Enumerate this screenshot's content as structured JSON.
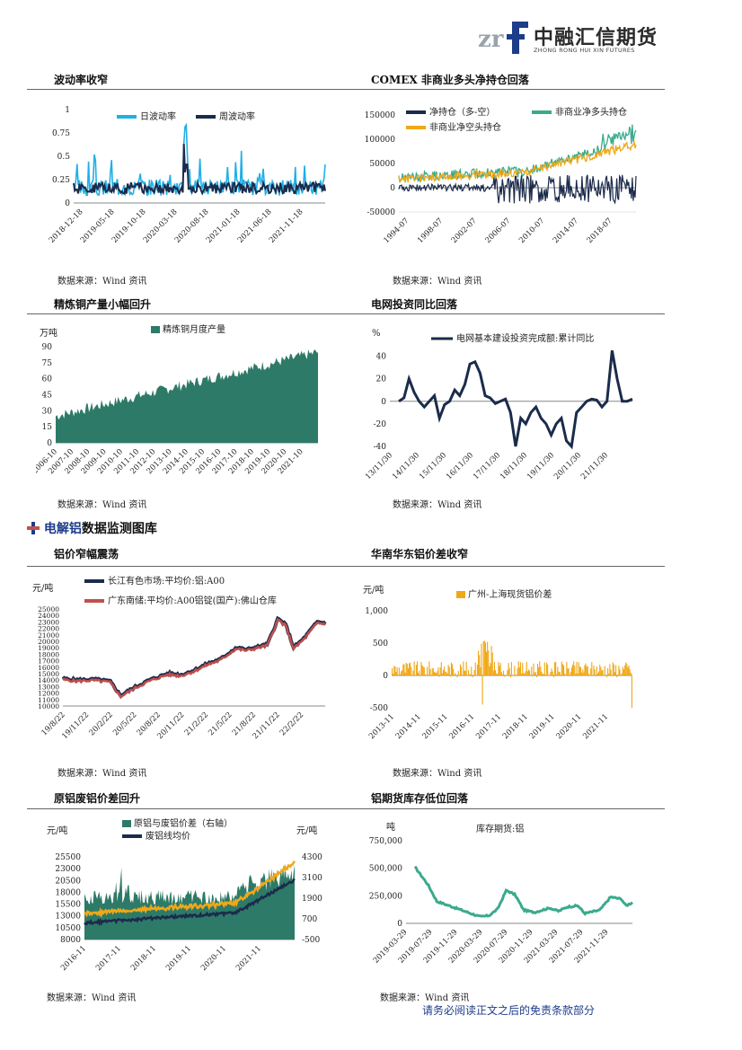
{
  "header": {
    "logo_text_cn": "中融汇信期货",
    "logo_text_en": "ZHONG RONG HUI XIN FUTURES",
    "logo_mark": "zrf"
  },
  "section_title": {
    "prefix": "电解铝",
    "suffix": "数据监测图库"
  },
  "footer": "请务必阅读正文之后的免责条款部分",
  "panels": {
    "vol": {
      "title": "波动率收窄",
      "source": "数据来源：Wind 资讯"
    },
    "comex": {
      "title": "COMEX 非商业多头净持仓回落",
      "source": "数据来源：Wind 资讯"
    },
    "copper": {
      "title": "精炼铜产量小幅回升",
      "source": "数据来源：Wind 资讯"
    },
    "grid": {
      "title": "电网投资同比回落",
      "source": "数据来源：Wind 资讯"
    },
    "alprice": {
      "title": "铝价窄幅震荡",
      "source": "数据来源：Wind 资讯"
    },
    "spread": {
      "title": "华南华东铝价差收窄",
      "source": "数据来源：Wind 资讯"
    },
    "scrap": {
      "title": "原铝废铝价差回升",
      "source": "数据来源：Wind 资讯"
    },
    "stock": {
      "title": "铝期货库存低位回落",
      "source": "数据来源：Wind 资讯"
    }
  },
  "chart_data": [
    {
      "id": "vol",
      "type": "line",
      "series": [
        {
          "name": "日波动率",
          "color": "#1fb0e6"
        },
        {
          "name": "周波动率",
          "color": "#1b2b4b"
        }
      ],
      "x_ticks": [
        "2018-12-18",
        "2019-05-18",
        "2019-10-18",
        "2020-03-18",
        "2020-08-18",
        "2021-01-18",
        "2021-06-18",
        "2021-11-18"
      ],
      "y_ticks": [
        "0",
        "0.25",
        "0.5",
        "0.75",
        "1"
      ],
      "ylim": [
        0,
        1
      ]
    },
    {
      "id": "comex",
      "type": "line",
      "series": [
        {
          "name": "净持仓（多-空）",
          "color": "#1b2b4b"
        },
        {
          "name": "非商业净多头持仓",
          "color": "#3aaa8c"
        },
        {
          "name": "非商业净空头持仓",
          "color": "#f0a818"
        }
      ],
      "x_ticks": [
        "1994-07",
        "1998-07",
        "2002-07",
        "2006-07",
        "2010-07",
        "2014-07",
        "2018-07"
      ],
      "y_ticks": [
        "-50000",
        "0",
        "50000",
        "100000",
        "150000"
      ],
      "ylim": [
        -50000,
        150000
      ]
    },
    {
      "id": "copper",
      "type": "area",
      "series": [
        {
          "name": "精炼铜月度产量",
          "color": "#2e7a68"
        }
      ],
      "ylabel": "万吨",
      "x_ticks": [
        "2006-10",
        "2007-10",
        "2008-10",
        "2009-10",
        "2010-10",
        "2011-10",
        "2012-10",
        "2013-10",
        "2014-10",
        "2015-10",
        "2016-10",
        "2017-10",
        "2018-10",
        "2019-10",
        "2020-10",
        "2021-10"
      ],
      "y_ticks": [
        "0",
        "15",
        "30",
        "45",
        "60",
        "75",
        "90"
      ],
      "ylim": [
        0,
        90
      ]
    },
    {
      "id": "grid",
      "type": "line",
      "series": [
        {
          "name": "电网基本建设投资完成额:累计同比",
          "color": "#1b2b4b"
        }
      ],
      "ylabel": "%",
      "x_ticks": [
        "13/11/30",
        "14/11/30",
        "15/11/30",
        "16/11/30",
        "17/11/30",
        "18/11/30",
        "19/11/30",
        "20/11/30",
        "21/11/30"
      ],
      "y_ticks": [
        "-40",
        "-20",
        "0",
        "20",
        "40"
      ],
      "ylim": [
        -40,
        50
      ]
    },
    {
      "id": "alprice",
      "type": "line",
      "series": [
        {
          "name": "长江有色市场:平均价:铝:A00",
          "color": "#1b2b4b"
        },
        {
          "name": "广东南储:平均价:A00铝锭(国产):佛山仓库",
          "color": "#c0504d"
        }
      ],
      "ylabel": "元/吨",
      "x_ticks": [
        "19/8/22",
        "19/11/22",
        "20/2/22",
        "20/5/22",
        "20/8/22",
        "20/11/22",
        "21/2/22",
        "21/5/22",
        "21/8/22",
        "21/11/22",
        "22/2/22"
      ],
      "y_ticks": [
        "10000",
        "11000",
        "12000",
        "13000",
        "14000",
        "15000",
        "16000",
        "17000",
        "18000",
        "19000",
        "20000",
        "21000",
        "22000",
        "23000",
        "24000",
        "25000"
      ],
      "ylim": [
        10000,
        25000
      ]
    },
    {
      "id": "spread",
      "type": "bar",
      "series": [
        {
          "name": "广州-上海现货铝价差",
          "color": "#f0a818"
        }
      ],
      "ylabel": "元/吨",
      "x_ticks": [
        "2013-11",
        "2014-11",
        "2015-11",
        "2016-11",
        "2017-11",
        "2018-11",
        "2019-11",
        "2020-11",
        "2021-11"
      ],
      "y_ticks": [
        "-500",
        "0",
        "500",
        "1,000"
      ],
      "ylim": [
        -500,
        1000
      ]
    },
    {
      "id": "scrap",
      "type": "area",
      "series": [
        {
          "name": "原铝与废铝价差（右轴）",
          "color": "#2e7a68"
        },
        {
          "name": "废铝线均价",
          "color": "#1b2b4b"
        },
        {
          "name": "",
          "color": "#f0a818"
        }
      ],
      "ylabel": "元/吨",
      "ylabel_right": "元/吨",
      "x_ticks": [
        "2016-11",
        "2017-11",
        "2018-11",
        "2019-11",
        "2020-11",
        "2021-11"
      ],
      "y_ticks": [
        "8000",
        "10500",
        "13000",
        "15500",
        "18000",
        "20500",
        "23000",
        "25500"
      ],
      "y2_ticks": [
        "-500",
        "700",
        "1900",
        "3100",
        "4300"
      ],
      "ylim": [
        8000,
        25500
      ],
      "y2lim": [
        -500,
        4300
      ]
    },
    {
      "id": "stock",
      "type": "line",
      "series": [
        {
          "name": "库存期货:铝",
          "color": "#3aaa8c"
        }
      ],
      "ylabel": "吨",
      "x_ticks": [
        "2019-03-29",
        "2019-07-29",
        "2019-11-29",
        "2020-03-29",
        "2020-07-29",
        "2020-11-29",
        "2021-03-29",
        "2021-07-29",
        "2021-11-29"
      ],
      "y_ticks": [
        "0",
        "250,000",
        "500,000",
        "750,000"
      ],
      "ylim": [
        0,
        750000
      ]
    }
  ]
}
